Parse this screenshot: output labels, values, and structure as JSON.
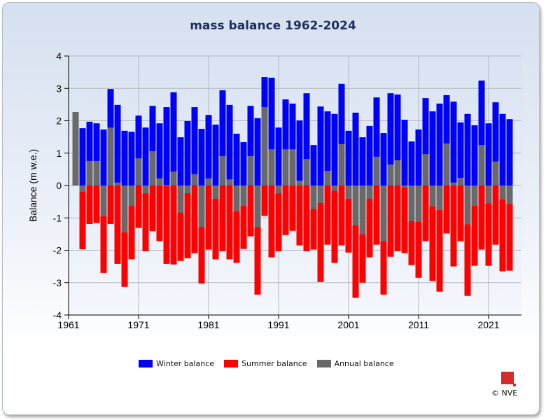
{
  "chart_data": {
    "type": "bar",
    "title": "mass balance 1962-2024",
    "xlabel": "",
    "ylabel": "Balance (m w.e.)",
    "xlim": [
      1961,
      2025.7
    ],
    "ylim": [
      -4,
      4
    ],
    "xticks": [
      1961,
      1971,
      1981,
      1991,
      2001,
      2011,
      2021
    ],
    "yticks": [
      -4,
      -3,
      -2,
      -1,
      0,
      1,
      2,
      3,
      4
    ],
    "grid": true,
    "legend_placement": "bottom",
    "x": [
      1962,
      1963,
      1964,
      1965,
      1966,
      1967,
      1968,
      1969,
      1970,
      1971,
      1972,
      1973,
      1974,
      1975,
      1976,
      1977,
      1978,
      1979,
      1980,
      1981,
      1982,
      1983,
      1984,
      1985,
      1986,
      1987,
      1988,
      1989,
      1990,
      1991,
      1992,
      1993,
      1994,
      1995,
      1996,
      1997,
      1998,
      1999,
      2000,
      2001,
      2002,
      2003,
      2004,
      2005,
      2006,
      2007,
      2008,
      2009,
      2010,
      2011,
      2012,
      2013,
      2014,
      2015,
      2016,
      2017,
      2018,
      2019,
      2020,
      2021,
      2022,
      2023,
      2024
    ],
    "series": [
      {
        "name": "Winter balance",
        "color": "#0000ff",
        "values": [
          null,
          1.77,
          1.97,
          1.92,
          1.73,
          2.98,
          2.49,
          1.69,
          1.66,
          2.16,
          1.79,
          2.46,
          1.92,
          2.42,
          2.88,
          1.49,
          1.99,
          2.42,
          1.75,
          2.18,
          1.88,
          2.94,
          2.49,
          1.6,
          1.34,
          2.46,
          2.08,
          3.35,
          3.33,
          1.79,
          2.66,
          2.53,
          2.01,
          2.85,
          1.25,
          2.44,
          2.29,
          2.21,
          3.14,
          1.69,
          2.25,
          1.49,
          1.84,
          2.72,
          1.62,
          2.85,
          2.81,
          2.03,
          1.36,
          1.73,
          2.7,
          2.29,
          2.53,
          2.79,
          2.59,
          1.95,
          2.21,
          1.86,
          3.24,
          1.92,
          2.57,
          2.21,
          2.05
        ]
      },
      {
        "name": "Summer balance",
        "color": "#ff0000",
        "values": [
          null,
          -1.97,
          -1.19,
          -1.16,
          -2.7,
          -1.19,
          -2.42,
          -3.13,
          -2.28,
          -1.31,
          -2.03,
          -1.41,
          -1.72,
          -2.42,
          -2.44,
          -2.33,
          -2.25,
          -2.09,
          -3.03,
          -1.98,
          -2.28,
          -2.03,
          -2.28,
          -2.39,
          -1.96,
          -1.57,
          -3.37,
          -0.94,
          -2.22,
          -2.03,
          -1.53,
          -1.4,
          -1.85,
          -2.03,
          -1.98,
          -2.98,
          -1.83,
          -2.39,
          -1.85,
          -2.07,
          -3.47,
          -3.0,
          -2.22,
          -1.83,
          -3.37,
          -2.2,
          -2.03,
          -2.09,
          -2.46,
          -2.85,
          -1.72,
          -2.95,
          -3.28,
          -1.48,
          -2.5,
          -1.72,
          -3.41,
          -2.48,
          -1.98,
          -2.48,
          -1.83,
          -2.65,
          -2.63
        ]
      },
      {
        "name": "Annual balance",
        "color": "#696969",
        "values": [
          2.27,
          -0.19,
          0.76,
          0.76,
          -0.95,
          1.79,
          0.09,
          -1.45,
          -0.63,
          0.84,
          -0.24,
          1.06,
          0.22,
          0.02,
          0.43,
          -0.84,
          -0.24,
          0.35,
          -1.28,
          0.22,
          -0.41,
          0.91,
          0.19,
          -0.8,
          -0.63,
          0.91,
          -1.29,
          2.42,
          1.12,
          -0.24,
          1.12,
          1.12,
          0.15,
          0.82,
          -0.73,
          -0.54,
          0.45,
          -0.17,
          1.28,
          -0.41,
          -1.23,
          -1.51,
          -0.41,
          0.89,
          -1.72,
          0.65,
          0.78,
          -0.06,
          -1.1,
          -1.12,
          0.97,
          -0.65,
          -0.76,
          1.3,
          0.09,
          0.24,
          -1.2,
          -0.63,
          1.25,
          -0.55,
          0.74,
          -0.43,
          -0.58
        ]
      }
    ]
  },
  "footer": {
    "copyright": "© NVE",
    "logo_text": "NVE"
  }
}
